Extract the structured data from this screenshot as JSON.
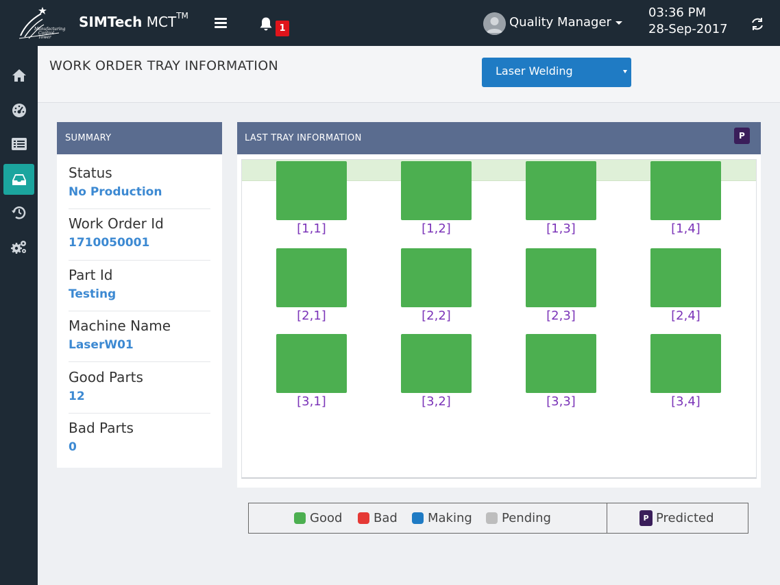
{
  "app": {
    "brand_bold": "SIMTech",
    "brand_rest": " MCT",
    "brand_sup": "TM",
    "logo_text": "Manufacturing Control Tower"
  },
  "topbar": {
    "notification_count": "1",
    "user_name": "Quality Manager",
    "time": "03:36 PM",
    "date": "28-Sep-2017"
  },
  "sidebar": {
    "items": [
      {
        "icon": "home-icon"
      },
      {
        "icon": "dashboard-icon"
      },
      {
        "icon": "list-icon"
      },
      {
        "icon": "tray-icon",
        "active": true
      },
      {
        "icon": "history-icon"
      },
      {
        "icon": "settings-icon"
      }
    ]
  },
  "page": {
    "title": "WORK ORDER TRAY INFORMATION",
    "machine_select": "Laser Welding"
  },
  "summary": {
    "header": "SUMMARY",
    "rows": [
      {
        "label": "Status",
        "value": "No Production"
      },
      {
        "label": "Work Order Id",
        "value": "1710050001"
      },
      {
        "label": "Part Id",
        "value": "Testing"
      },
      {
        "label": "Machine Name",
        "value": "LaserW01"
      },
      {
        "label": "Good Parts",
        "value": "12"
      },
      {
        "label": "Bad Parts",
        "value": "0"
      }
    ]
  },
  "tray": {
    "header": "LAST TRAY INFORMATION",
    "predicted_badge": "P",
    "cells": [
      {
        "label": "[1,1]",
        "status": "good"
      },
      {
        "label": "[1,2]",
        "status": "good"
      },
      {
        "label": "[1,3]",
        "status": "good"
      },
      {
        "label": "[1,4]",
        "status": "good"
      },
      {
        "label": "[2,1]",
        "status": "good"
      },
      {
        "label": "[2,2]",
        "status": "good"
      },
      {
        "label": "[2,3]",
        "status": "good"
      },
      {
        "label": "[2,4]",
        "status": "good"
      },
      {
        "label": "[3,1]",
        "status": "good"
      },
      {
        "label": "[3,2]",
        "status": "good"
      },
      {
        "label": "[3,3]",
        "status": "good"
      },
      {
        "label": "[3,4]",
        "status": "good"
      }
    ]
  },
  "legend": {
    "good": "Good",
    "bad": "Bad",
    "making": "Making",
    "pending": "Pending",
    "predicted_badge": "P",
    "predicted": "Predicted"
  },
  "colors": {
    "good": "#4caf50",
    "bad": "#e53935",
    "making": "#1f7bc4",
    "pending": "#bdbdbd",
    "predicted": "#3a1e5a",
    "accent": "#1ba59e"
  }
}
